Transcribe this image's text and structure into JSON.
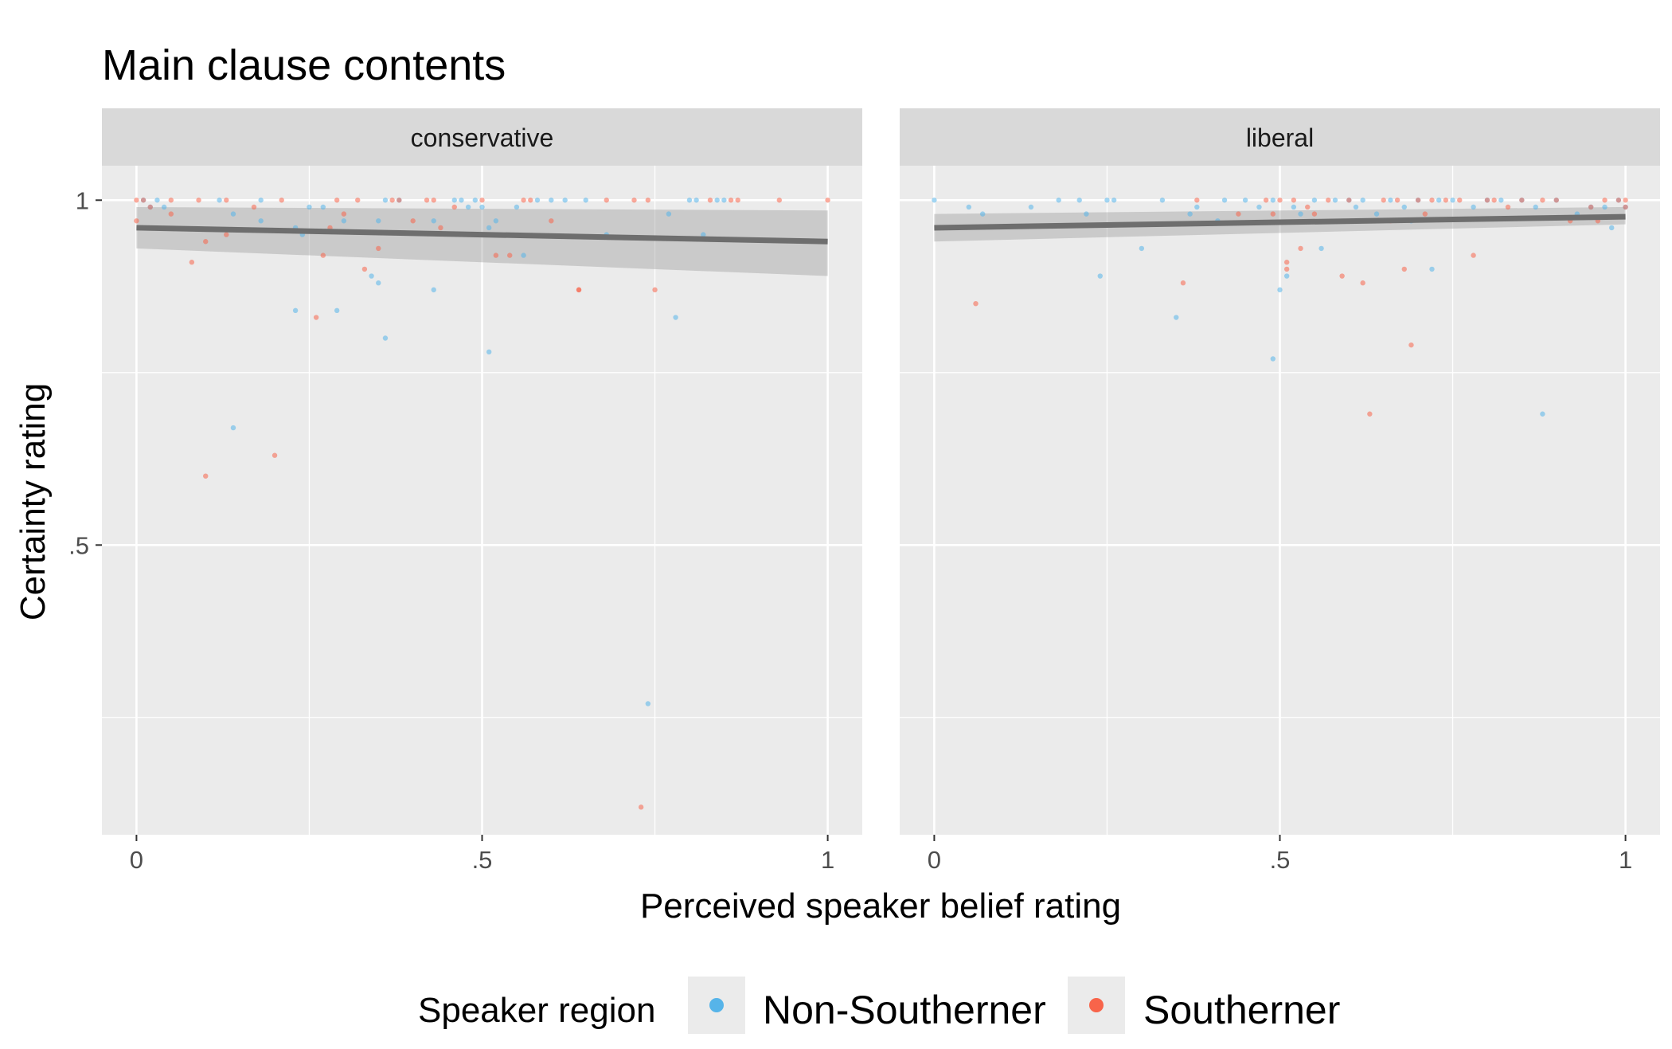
{
  "chart_data": {
    "type": "scatter",
    "title": "Main clause contents",
    "xlabel": "Perceived speaker belief rating",
    "ylabel": "Certainty rating",
    "xlim": [
      -0.05,
      1.05
    ],
    "ylim": [
      0.08,
      1.05
    ],
    "x_ticks": [
      0,
      0.5,
      1
    ],
    "x_tick_labels": [
      "0",
      ".5",
      "1"
    ],
    "y_ticks": [
      0.5,
      1
    ],
    "y_tick_labels": [
      ".5",
      "1"
    ],
    "grid": true,
    "legend": {
      "title": "Speaker region",
      "position": "bottom",
      "entries": [
        {
          "label": "Non-Southerner",
          "color": "#56B4E9"
        },
        {
          "label": "Southerner",
          "color": "#F8644A"
        }
      ]
    },
    "panels": [
      {
        "label": "conservative",
        "fit": {
          "x": [
            0,
            1
          ],
          "y": [
            0.96,
            0.94
          ],
          "ci_lower": [
            0.93,
            0.89
          ],
          "ci_upper": [
            0.99,
            0.985
          ]
        },
        "series": [
          {
            "name": "Non-Southerner",
            "points": [
              [
                0.01,
                1.0
              ],
              [
                0.02,
                0.99
              ],
              [
                0.03,
                1.0
              ],
              [
                0.04,
                0.99
              ],
              [
                0.12,
                1.0
              ],
              [
                0.14,
                0.98
              ],
              [
                0.18,
                1.0
              ],
              [
                0.18,
                0.97
              ],
              [
                0.23,
                0.96
              ],
              [
                0.23,
                0.84
              ],
              [
                0.25,
                0.99
              ],
              [
                0.29,
                0.84
              ],
              [
                0.3,
                0.97
              ],
              [
                0.34,
                0.89
              ],
              [
                0.35,
                0.88
              ],
              [
                0.35,
                0.97
              ],
              [
                0.36,
                0.8
              ],
              [
                0.36,
                1.0
              ],
              [
                0.38,
                1.0
              ],
              [
                0.43,
                0.87
              ],
              [
                0.43,
                0.97
              ],
              [
                0.46,
                1.0
              ],
              [
                0.47,
                1.0
              ],
              [
                0.48,
                0.99
              ],
              [
                0.49,
                1.0
              ],
              [
                0.5,
                0.99
              ],
              [
                0.51,
                0.96
              ],
              [
                0.51,
                0.78
              ],
              [
                0.55,
                0.99
              ],
              [
                0.56,
                0.92
              ],
              [
                0.58,
                1.0
              ],
              [
                0.6,
                1.0
              ],
              [
                0.62,
                1.0
              ],
              [
                0.65,
                1.0
              ],
              [
                0.68,
                0.95
              ],
              [
                0.74,
                0.27
              ],
              [
                0.77,
                0.98
              ],
              [
                0.78,
                0.83
              ],
              [
                0.8,
                1.0
              ],
              [
                0.81,
                1.0
              ],
              [
                0.82,
                0.95
              ],
              [
                0.84,
                1.0
              ],
              [
                0.85,
                1.0
              ],
              [
                0.14,
                0.67
              ],
              [
                0.24,
                0.95
              ],
              [
                0.27,
                0.99
              ],
              [
                0.52,
                0.97
              ]
            ]
          },
          {
            "name": "Southerner",
            "points": [
              [
                0.0,
                1.0
              ],
              [
                0.0,
                0.97
              ],
              [
                0.01,
                1.0
              ],
              [
                0.02,
                0.99
              ],
              [
                0.05,
                1.0
              ],
              [
                0.05,
                0.98
              ],
              [
                0.08,
                0.91
              ],
              [
                0.09,
                1.0
              ],
              [
                0.1,
                0.6
              ],
              [
                0.1,
                0.94
              ],
              [
                0.13,
                1.0
              ],
              [
                0.13,
                0.95
              ],
              [
                0.17,
                0.99
              ],
              [
                0.2,
                0.63
              ],
              [
                0.21,
                1.0
              ],
              [
                0.26,
                0.83
              ],
              [
                0.27,
                0.92
              ],
              [
                0.28,
                0.96
              ],
              [
                0.29,
                1.0
              ],
              [
                0.3,
                0.98
              ],
              [
                0.32,
                1.0
              ],
              [
                0.33,
                0.9
              ],
              [
                0.35,
                0.93
              ],
              [
                0.37,
                1.0
              ],
              [
                0.38,
                1.0
              ],
              [
                0.4,
                0.97
              ],
              [
                0.42,
                1.0
              ],
              [
                0.43,
                1.0
              ],
              [
                0.44,
                0.96
              ],
              [
                0.46,
                0.99
              ],
              [
                0.5,
                1.0
              ],
              [
                0.52,
                0.92
              ],
              [
                0.54,
                0.92
              ],
              [
                0.56,
                1.0
              ],
              [
                0.57,
                1.0
              ],
              [
                0.6,
                0.97
              ],
              [
                0.64,
                0.87
              ],
              [
                0.68,
                1.0
              ],
              [
                0.72,
                1.0
              ],
              [
                0.73,
                0.12
              ],
              [
                0.74,
                1.0
              ],
              [
                0.75,
                0.87
              ],
              [
                0.83,
                1.0
              ],
              [
                0.86,
                1.0
              ],
              [
                0.87,
                1.0
              ],
              [
                0.93,
                1.0
              ],
              [
                1.0,
                1.0
              ],
              [
                0.64,
                0.87
              ]
            ]
          }
        ]
      },
      {
        "label": "liberal",
        "fit": {
          "x": [
            0,
            1
          ],
          "y": [
            0.96,
            0.976
          ],
          "ci_lower": [
            0.94,
            0.965
          ],
          "ci_upper": [
            0.98,
            0.99
          ]
        },
        "series": [
          {
            "name": "Non-Southerner",
            "points": [
              [
                0.0,
                1.0
              ],
              [
                0.05,
                0.99
              ],
              [
                0.07,
                0.98
              ],
              [
                0.14,
                0.99
              ],
              [
                0.18,
                1.0
              ],
              [
                0.21,
                1.0
              ],
              [
                0.22,
                0.98
              ],
              [
                0.24,
                0.89
              ],
              [
                0.25,
                1.0
              ],
              [
                0.26,
                1.0
              ],
              [
                0.3,
                0.93
              ],
              [
                0.33,
                1.0
              ],
              [
                0.35,
                0.83
              ],
              [
                0.37,
                0.98
              ],
              [
                0.38,
                0.99
              ],
              [
                0.42,
                1.0
              ],
              [
                0.45,
                1.0
              ],
              [
                0.47,
                0.99
              ],
              [
                0.49,
                1.0
              ],
              [
                0.49,
                0.77
              ],
              [
                0.5,
                0.87
              ],
              [
                0.51,
                0.89
              ],
              [
                0.52,
                0.99
              ],
              [
                0.53,
                0.98
              ],
              [
                0.55,
                1.0
              ],
              [
                0.56,
                0.93
              ],
              [
                0.58,
                1.0
              ],
              [
                0.6,
                1.0
              ],
              [
                0.61,
                0.99
              ],
              [
                0.62,
                1.0
              ],
              [
                0.64,
                0.98
              ],
              [
                0.66,
                1.0
              ],
              [
                0.68,
                0.99
              ],
              [
                0.69,
                0.97
              ],
              [
                0.7,
                1.0
              ],
              [
                0.72,
                0.9
              ],
              [
                0.73,
                1.0
              ],
              [
                0.75,
                1.0
              ],
              [
                0.78,
                0.99
              ],
              [
                0.8,
                1.0
              ],
              [
                0.82,
                1.0
              ],
              [
                0.85,
                1.0
              ],
              [
                0.87,
                0.99
              ],
              [
                0.88,
                0.69
              ],
              [
                0.9,
                1.0
              ],
              [
                0.93,
                0.98
              ],
              [
                0.95,
                0.99
              ],
              [
                0.97,
                0.99
              ],
              [
                0.98,
                0.96
              ],
              [
                0.99,
                1.0
              ],
              [
                1.0,
                0.99
              ],
              [
                0.41,
                0.97
              ],
              [
                0.61,
                0.97
              ]
            ]
          },
          {
            "name": "Southerner",
            "points": [
              [
                0.06,
                0.85
              ],
              [
                0.36,
                0.88
              ],
              [
                0.38,
                1.0
              ],
              [
                0.44,
                0.98
              ],
              [
                0.48,
                1.0
              ],
              [
                0.49,
                0.98
              ],
              [
                0.5,
                1.0
              ],
              [
                0.51,
                0.91
              ],
              [
                0.51,
                0.9
              ],
              [
                0.52,
                1.0
              ],
              [
                0.53,
                0.93
              ],
              [
                0.55,
                0.98
              ],
              [
                0.57,
                1.0
              ],
              [
                0.59,
                0.89
              ],
              [
                0.6,
                1.0
              ],
              [
                0.62,
                0.88
              ],
              [
                0.63,
                0.69
              ],
              [
                0.64,
                0.97
              ],
              [
                0.65,
                1.0
              ],
              [
                0.67,
                1.0
              ],
              [
                0.68,
                0.9
              ],
              [
                0.69,
                0.79
              ],
              [
                0.7,
                1.0
              ],
              [
                0.71,
                0.98
              ],
              [
                0.72,
                1.0
              ],
              [
                0.74,
                1.0
              ],
              [
                0.76,
                1.0
              ],
              [
                0.78,
                0.92
              ],
              [
                0.8,
                1.0
              ],
              [
                0.81,
                1.0
              ],
              [
                0.83,
                0.99
              ],
              [
                0.85,
                1.0
              ],
              [
                0.88,
                1.0
              ],
              [
                0.9,
                1.0
              ],
              [
                0.92,
                0.97
              ],
              [
                0.95,
                0.99
              ],
              [
                0.97,
                1.0
              ],
              [
                0.99,
                1.0
              ],
              [
                1.0,
                1.0
              ],
              [
                1.0,
                0.99
              ],
              [
                0.54,
                0.99
              ],
              [
                0.66,
                0.97
              ],
              [
                0.96,
                0.97
              ]
            ]
          }
        ]
      }
    ]
  }
}
